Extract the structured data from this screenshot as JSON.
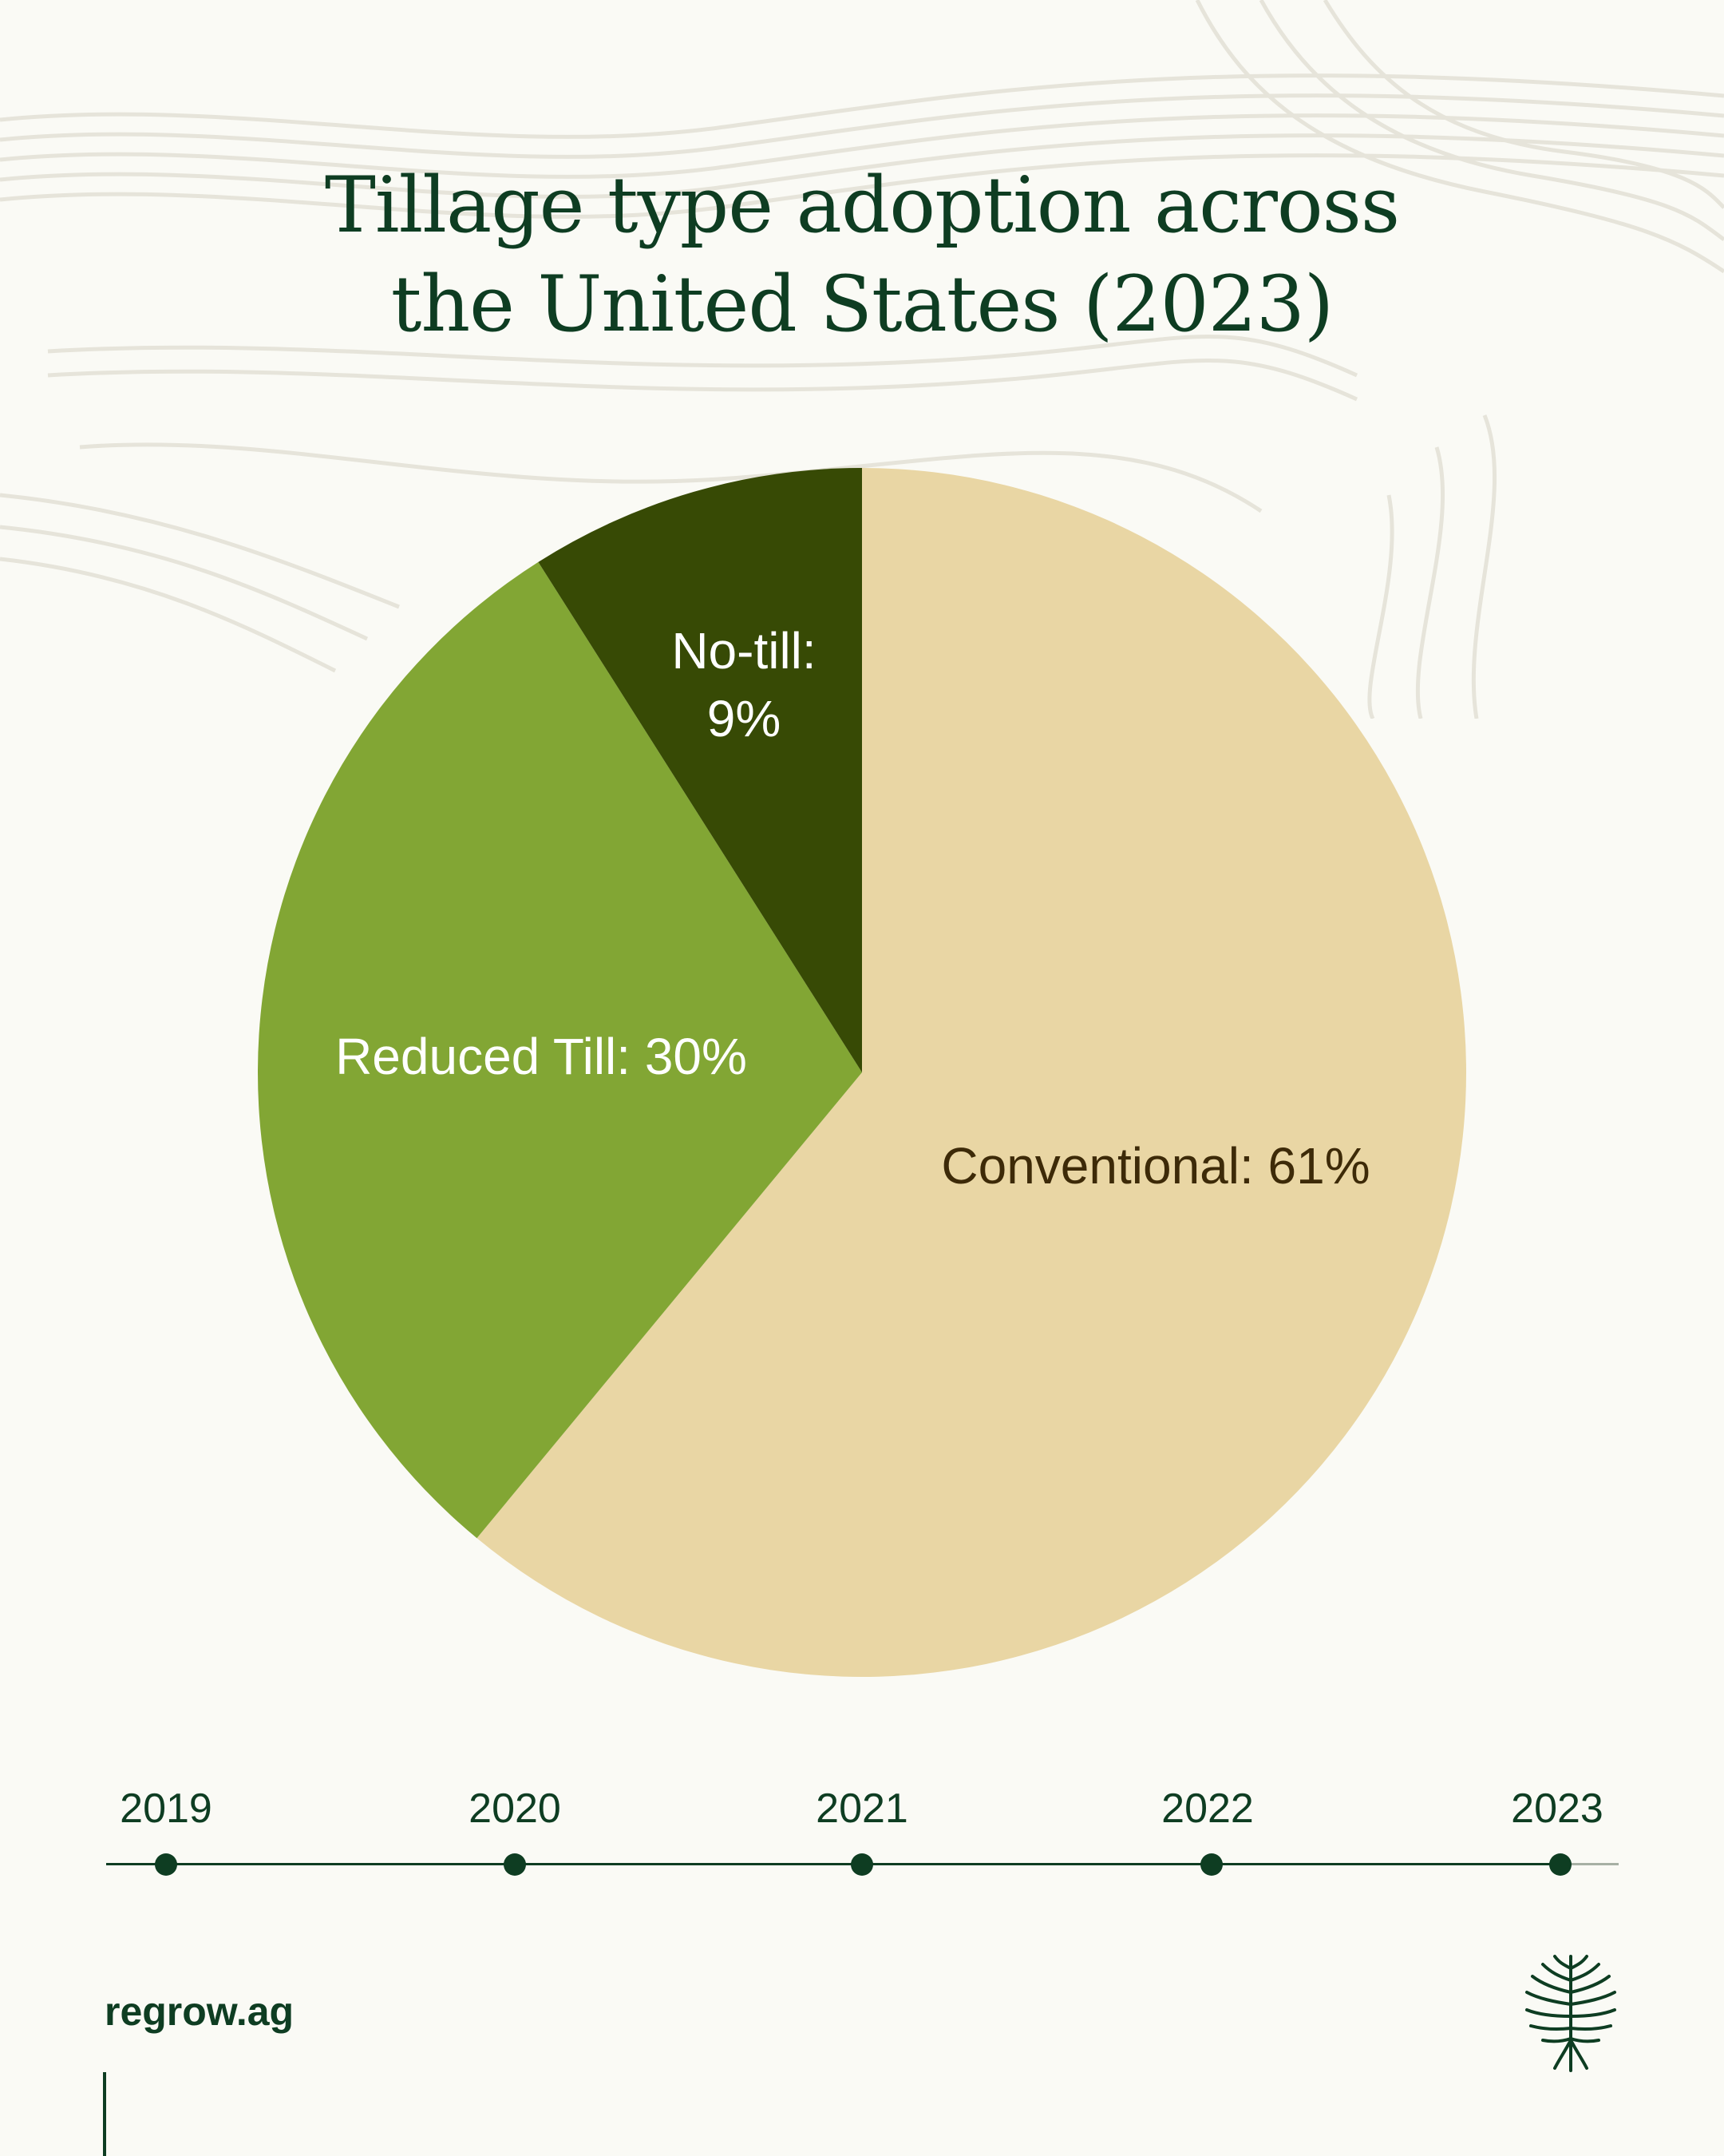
{
  "colors": {
    "background": "#fafaf5",
    "title": "#0e3d22",
    "accent_dark": "#0e3d22",
    "conventional": "#e9d6a4",
    "reduced_till": "#82a634",
    "no_till": "#374a05",
    "label_light": "#ffffff",
    "label_dark": "#3d2a08"
  },
  "title_lines": [
    "Tillage type adoption across",
    "the United States (2023)"
  ],
  "chart_data": {
    "type": "pie",
    "title": "Tillage type adoption across the United States (2023)",
    "slices": [
      {
        "name": "Conventional",
        "value": 61,
        "label": "Conventional: 61%",
        "color": "#e9d6a4",
        "label_color": "#3d2a08"
      },
      {
        "name": "Reduced Till",
        "value": 30,
        "label": "Reduced Till: 30%",
        "color": "#82a634",
        "label_color": "#ffffff"
      },
      {
        "name": "No-till",
        "value": 9,
        "label_lines": [
          "No-till:",
          "9%"
        ],
        "color": "#374a05",
        "label_color": "#ffffff"
      }
    ],
    "start": "12 o'clock",
    "direction": "clockwise"
  },
  "timeline": {
    "years": [
      "2019",
      "2020",
      "2021",
      "2022",
      "2023"
    ],
    "selected": "2023"
  },
  "footer": {
    "url": "regrow.ag",
    "logo_icon": "regrow-tree-logo-icon"
  }
}
